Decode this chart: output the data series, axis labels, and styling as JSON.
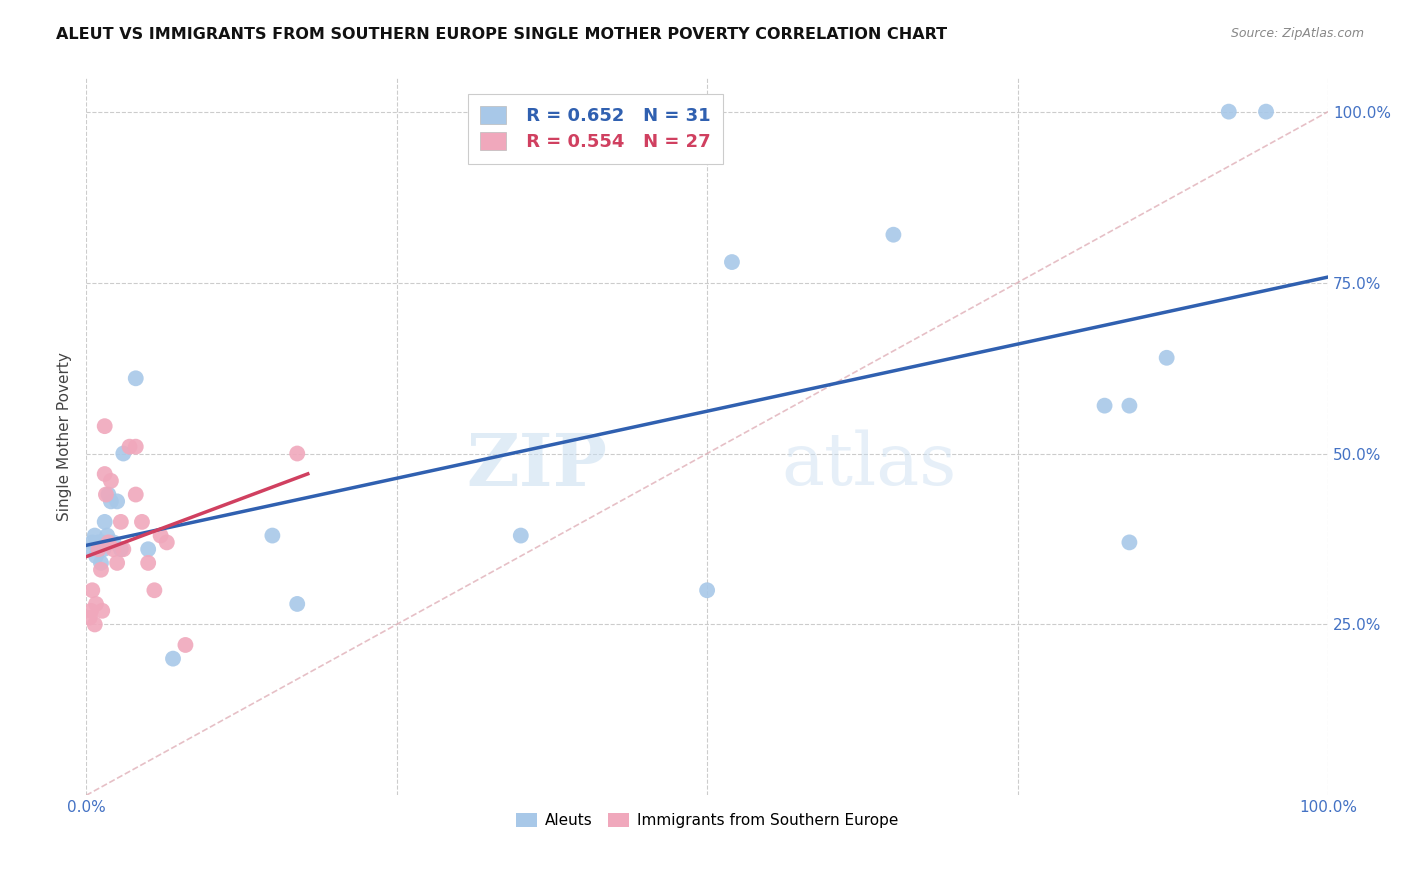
{
  "title": "ALEUT VS IMMIGRANTS FROM SOUTHERN EUROPE SINGLE MOTHER POVERTY CORRELATION CHART",
  "source": "Source: ZipAtlas.com",
  "ylabel": "Single Mother Poverty",
  "legend1_R": "0.652",
  "legend1_N": "31",
  "legend2_R": "0.554",
  "legend2_N": "27",
  "legend_label1": "Aleuts",
  "legend_label2": "Immigrants from Southern Europe",
  "xlim": [
    0.0,
    1.0
  ],
  "ylim": [
    0.0,
    1.05
  ],
  "x_ticks": [
    0.0,
    0.25,
    0.5,
    0.75,
    1.0
  ],
  "x_tick_labels": [
    "0.0%",
    "",
    "",
    "",
    "100.0%"
  ],
  "y_ticks": [
    0.25,
    0.5,
    0.75,
    1.0
  ],
  "y_tick_labels": [
    "25.0%",
    "50.0%",
    "75.0%",
    "100.0%"
  ],
  "color_aleuts": "#a8c8e8",
  "color_immigrants": "#f0a8bc",
  "color_line_aleuts": "#3060b0",
  "color_line_immigrants": "#d04060",
  "color_diagonal": "#e0b0b8",
  "aleuts_x": [
    0.003,
    0.005,
    0.007,
    0.008,
    0.01,
    0.012,
    0.013,
    0.014,
    0.015,
    0.017,
    0.018,
    0.02,
    0.022,
    0.025,
    0.028,
    0.03,
    0.04,
    0.05,
    0.07,
    0.15,
    0.17,
    0.35,
    0.5,
    0.52,
    0.65,
    0.82,
    0.84,
    0.84,
    0.87,
    0.92,
    0.95
  ],
  "aleuts_y": [
    0.36,
    0.37,
    0.38,
    0.35,
    0.37,
    0.34,
    0.37,
    0.36,
    0.4,
    0.38,
    0.44,
    0.43,
    0.37,
    0.43,
    0.36,
    0.5,
    0.61,
    0.36,
    0.2,
    0.38,
    0.28,
    0.38,
    0.3,
    0.78,
    0.82,
    0.57,
    0.57,
    0.37,
    0.64,
    1.0,
    1.0
  ],
  "immigrants_x": [
    0.003,
    0.004,
    0.005,
    0.007,
    0.008,
    0.01,
    0.012,
    0.013,
    0.015,
    0.015,
    0.016,
    0.018,
    0.02,
    0.022,
    0.025,
    0.028,
    0.03,
    0.035,
    0.04,
    0.04,
    0.045,
    0.05,
    0.055,
    0.06,
    0.065,
    0.08,
    0.17
  ],
  "immigrants_y": [
    0.26,
    0.27,
    0.3,
    0.25,
    0.28,
    0.36,
    0.33,
    0.27,
    0.54,
    0.47,
    0.44,
    0.37,
    0.46,
    0.36,
    0.34,
    0.4,
    0.36,
    0.51,
    0.51,
    0.44,
    0.4,
    0.34,
    0.3,
    0.38,
    0.37,
    0.22,
    0.5
  ],
  "watermark_zip": "ZIP",
  "watermark_atlas": "atlas",
  "background_color": "#ffffff",
  "grid_color": "#cccccc"
}
